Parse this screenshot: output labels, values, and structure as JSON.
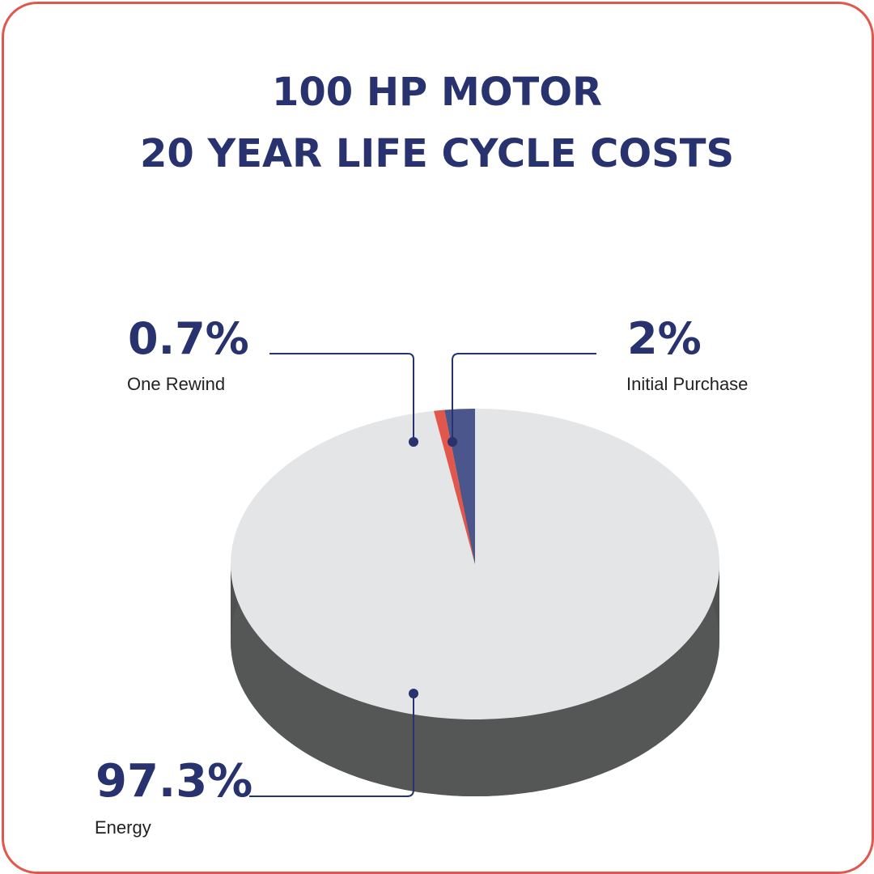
{
  "chart_data": {
    "type": "pie",
    "title": "100 HP MOTOR",
    "subtitle": "20 YEAR LIFE CYCLE COSTS",
    "slices": [
      {
        "label": "Energy",
        "value": 97.3,
        "value_label": "97.3%",
        "color": "#e4e5e7"
      },
      {
        "label": "One Rewind",
        "value": 0.7,
        "value_label": "0.7%",
        "color": "#e2574c"
      },
      {
        "label": "Initial Purchase",
        "value": 2,
        "value_label": "2%",
        "color": "#4b568c"
      }
    ],
    "style": "3d-disc",
    "legend": "callout labels"
  },
  "colors": {
    "accent": "#27326e",
    "border": "#e2574c",
    "disc_side": "#5f6060",
    "leader_line": "#27326e"
  }
}
